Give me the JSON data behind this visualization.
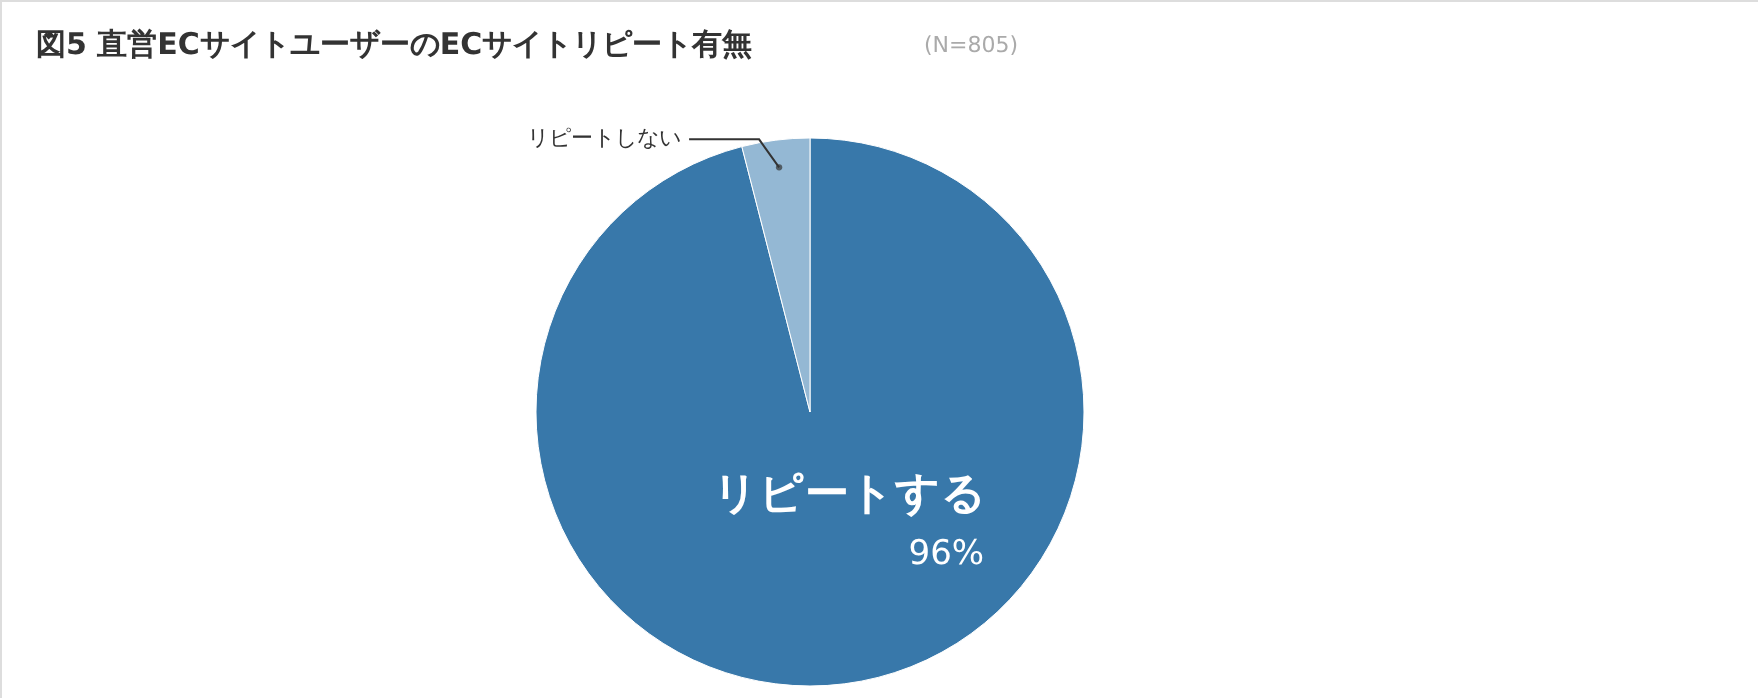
{
  "chart_data": {
    "type": "pie",
    "title": "図5  直営ECサイトユーザーのECサイトリピート有無",
    "subtitle": "(N=805)",
    "categories": [
      "リピートする",
      "リピートしない"
    ],
    "values": [
      96,
      4
    ],
    "colors": [
      "#3878aa",
      "#94b8d4"
    ],
    "value_labels": [
      "96%",
      null
    ]
  }
}
